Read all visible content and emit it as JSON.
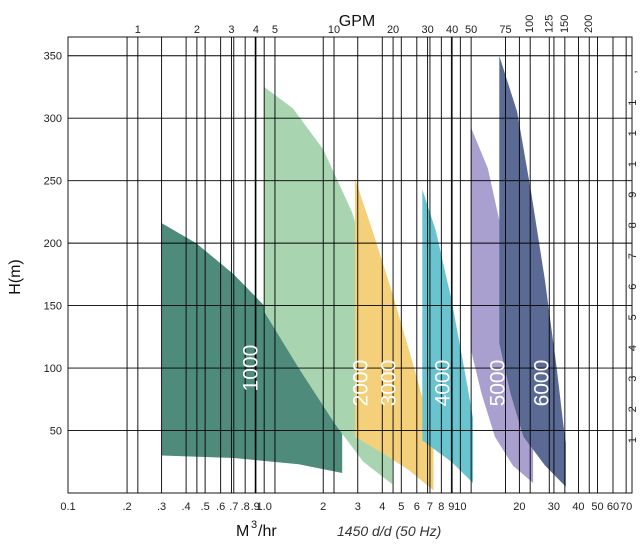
{
  "chart_data": {
    "type": "area",
    "title": "GPM",
    "xlabel": "M³/hr",
    "xlabel_main": "M",
    "xlabel_sup": "3",
    "xlabel_unit": "/hr",
    "ylabel": "H(m)",
    "footnote": "1450 d/d (50 Hz)",
    "x_scale": "log",
    "xlim": [
      0.1,
      75
    ],
    "ylim": [
      0,
      365
    ],
    "grid": true,
    "bottom_ticks": [
      {
        "v": 0.1,
        "label": "0.1"
      },
      {
        "v": 0.2,
        "label": ".2"
      },
      {
        "v": 0.3,
        "label": ".3"
      },
      {
        "v": 0.4,
        "label": ".4"
      },
      {
        "v": 0.5,
        "label": ".5"
      },
      {
        "v": 0.6,
        "label": ".6"
      },
      {
        "v": 0.7,
        "label": ".7"
      },
      {
        "v": 0.8,
        "label": ".8"
      },
      {
        "v": 0.9,
        "label": ".9"
      },
      {
        "v": 1,
        "label": "1.0"
      },
      {
        "v": 2,
        "label": "2"
      },
      {
        "v": 3,
        "label": "3"
      },
      {
        "v": 4,
        "label": "4"
      },
      {
        "v": 5,
        "label": "5"
      },
      {
        "v": 6,
        "label": "6"
      },
      {
        "v": 7,
        "label": "7"
      },
      {
        "v": 8,
        "label": "8"
      },
      {
        "v": 9,
        "label": "9"
      },
      {
        "v": 10,
        "label": "10"
      },
      {
        "v": 20,
        "label": "20"
      },
      {
        "v": 30,
        "label": "30"
      },
      {
        "v": 40,
        "label": "40"
      },
      {
        "v": 50,
        "label": "50"
      },
      {
        "v": 60,
        "label": "60"
      },
      {
        "v": 70,
        "label": "70"
      }
    ],
    "top_ticks": [
      {
        "v": 0.227,
        "label": "1"
      },
      {
        "v": 0.454,
        "label": "2"
      },
      {
        "v": 0.681,
        "label": "3"
      },
      {
        "v": 0.908,
        "label": "4"
      },
      {
        "v": 1.135,
        "label": "5"
      },
      {
        "v": 2.27,
        "label": "10"
      },
      {
        "v": 4.54,
        "label": "20"
      },
      {
        "v": 6.81,
        "label": "30"
      },
      {
        "v": 9.08,
        "label": "40"
      },
      {
        "v": 11.35,
        "label": "50"
      },
      {
        "v": 17.0,
        "label": "75"
      },
      {
        "v": 22.7,
        "label": "100"
      },
      {
        "v": 28.4,
        "label": "125"
      },
      {
        "v": 34.1,
        "label": "150"
      },
      {
        "v": 45.4,
        "label": "200"
      }
    ],
    "y_ticks": [
      50,
      100,
      150,
      200,
      250,
      300,
      350
    ],
    "right_axis_glyphs": [
      ",",
      "1",
      "1",
      "1",
      "9",
      "8",
      "7",
      "6",
      "5",
      "4",
      "3",
      "2",
      "1"
    ],
    "series": [
      {
        "name": "1000",
        "color": "#4e8b7b",
        "top": [
          [
            0.3,
            216
          ],
          [
            0.45,
            200
          ],
          [
            0.7,
            175
          ],
          [
            1.0,
            150
          ],
          [
            1.5,
            115
          ],
          [
            2.2,
            82
          ],
          [
            2.5,
            70
          ]
        ],
        "bottom": [
          [
            0.3,
            30
          ],
          [
            0.7,
            28
          ],
          [
            1.5,
            23
          ],
          [
            2.5,
            16
          ]
        ],
        "label_at": [
          0.85,
          100
        ]
      },
      {
        "name": "2000",
        "color": "#a8d5b0",
        "top": [
          [
            1.0,
            325
          ],
          [
            1.4,
            308
          ],
          [
            2.0,
            275
          ],
          [
            2.8,
            225
          ],
          [
            3.6,
            170
          ],
          [
            4.4,
            110
          ],
          [
            4.5,
            105
          ]
        ],
        "bottom": [
          [
            1.0,
            145
          ],
          [
            1.5,
            100
          ],
          [
            2.3,
            55
          ],
          [
            3.2,
            25
          ],
          [
            4.5,
            7
          ]
        ],
        "label_at": [
          3.1,
          88
        ]
      },
      {
        "name": "3000",
        "color": "#f5d07a",
        "top": [
          [
            2.9,
            252
          ],
          [
            3.6,
            208
          ],
          [
            4.5,
            160
          ],
          [
            5.7,
            105
          ],
          [
            6.9,
            58
          ],
          [
            7.3,
            48
          ]
        ],
        "bottom": [
          [
            2.9,
            45
          ],
          [
            4.0,
            32
          ],
          [
            5.5,
            18
          ],
          [
            7.3,
            2
          ]
        ],
        "label_at": [
          4.3,
          88
        ]
      },
      {
        "name": "4000",
        "color": "#6ac4cf",
        "top": [
          [
            6.4,
            243
          ],
          [
            7.5,
            210
          ],
          [
            9.0,
            155
          ],
          [
            10.6,
            95
          ],
          [
            11.6,
            60
          ]
        ],
        "bottom": [
          [
            6.4,
            42
          ],
          [
            9.0,
            25
          ],
          [
            11.6,
            8
          ]
        ],
        "label_at": [
          8.1,
          88
        ]
      },
      {
        "name": "5000",
        "color": "#a9a0cf",
        "top": [
          [
            11.3,
            293
          ],
          [
            13.8,
            260
          ],
          [
            16.5,
            205
          ],
          [
            19.8,
            130
          ],
          [
            22.5,
            65
          ],
          [
            23.5,
            45
          ]
        ],
        "bottom": [
          [
            11.3,
            115
          ],
          [
            12.8,
            80
          ],
          [
            15.0,
            45
          ],
          [
            18.5,
            22
          ],
          [
            23.5,
            8
          ]
        ],
        "label_at": [
          15.5,
          88
        ]
      },
      {
        "name": "6000",
        "color": "#5a6a94",
        "top": [
          [
            15.8,
            350
          ],
          [
            19.5,
            305
          ],
          [
            23.0,
            240
          ],
          [
            27.0,
            170
          ],
          [
            31.0,
            100
          ],
          [
            33.5,
            55
          ],
          [
            34.5,
            40
          ]
        ],
        "bottom": [
          [
            15.8,
            120
          ],
          [
            18.0,
            80
          ],
          [
            21.0,
            45
          ],
          [
            27.0,
            22
          ],
          [
            34.5,
            5
          ]
        ],
        "label_at": [
          26.0,
          88
        ]
      }
    ]
  }
}
